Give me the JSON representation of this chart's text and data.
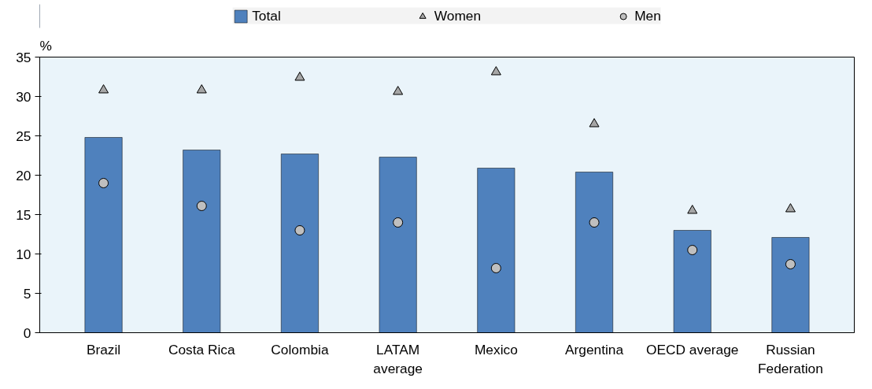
{
  "chart_data": {
    "type": "bar",
    "ylabel": "%",
    "categories": [
      "Brazil",
      "Costa Rica",
      "Colombia",
      "LATAM\naverage",
      "Mexico",
      "Argentina",
      "OECD average",
      "Russian\nFederation"
    ],
    "series": [
      {
        "name": "Total",
        "color": "#4f81bd",
        "values": [
          24.8,
          23.2,
          22.7,
          22.3,
          20.9,
          20.4,
          13.0,
          12.1
        ]
      },
      {
        "name": "Women",
        "type": "scatter",
        "marker": "triangle",
        "color": "#a6a6a6",
        "values": [
          30.8,
          30.8,
          32.4,
          30.6,
          33.1,
          26.5,
          15.5,
          15.7
        ]
      },
      {
        "name": "Men",
        "type": "scatter",
        "marker": "circle",
        "color": "#bfbfbf",
        "values": [
          19.0,
          16.1,
          13.0,
          14.0,
          8.2,
          14.0,
          10.5,
          8.7
        ]
      }
    ],
    "ylim": [
      0,
      35
    ],
    "yticks": [
      0,
      5,
      10,
      15,
      20,
      25,
      30,
      35
    ],
    "grid": false,
    "legend": "top"
  }
}
